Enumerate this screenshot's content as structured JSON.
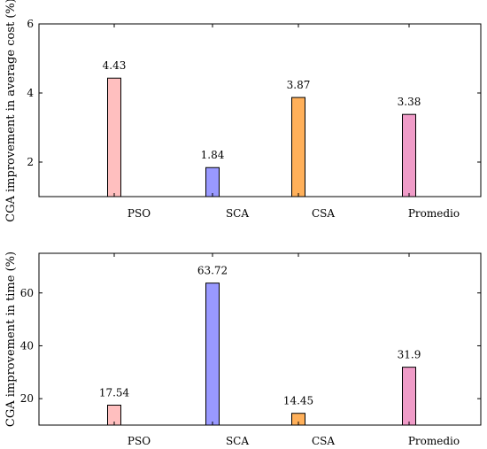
{
  "chart_data": [
    {
      "type": "bar",
      "categories": [
        "PSO",
        "SCA",
        "CSA",
        "Promedio"
      ],
      "values": [
        4.43,
        1.84,
        3.87,
        3.38
      ],
      "value_labels": [
        "4.43",
        "1.84",
        "3.87",
        "3.38"
      ],
      "ylabel": "CGA improvement in average cost (%)",
      "ylim": [
        1,
        6
      ],
      "yticks": [
        2,
        4,
        6
      ],
      "colors": [
        "#ffbfbf",
        "#9999ff",
        "#ffb05a",
        "#f09cc8"
      ],
      "grid": false
    },
    {
      "type": "bar",
      "categories": [
        "PSO",
        "SCA",
        "CSA",
        "Promedio"
      ],
      "values": [
        17.54,
        63.72,
        14.45,
        31.9
      ],
      "value_labels": [
        "17.54",
        "63.72",
        "14.45",
        "31.9"
      ],
      "ylabel": "CGA improvement in time (%)",
      "ylim": [
        10,
        75
      ],
      "yticks": [
        20,
        40,
        60
      ],
      "colors": [
        "#ffbfbf",
        "#9999ff",
        "#ffb05a",
        "#f09cc8"
      ],
      "grid": false
    }
  ]
}
